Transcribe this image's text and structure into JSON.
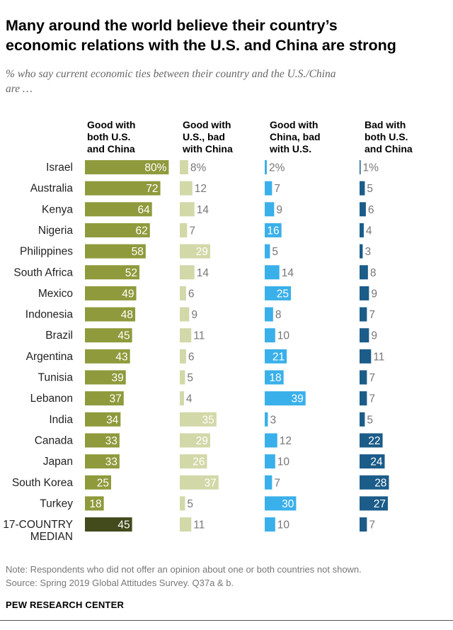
{
  "title_line1": "Many around the world believe their country’s",
  "title_line2": "economic relations with the U.S. and China are strong",
  "subtitle_line1": "% who say current economic ties between their country and the U.S./China",
  "subtitle_line2": "are …",
  "chart_data": {
    "type": "bar",
    "title": "Many around the world believe their country’s economic relations with the U.S. and China are strong",
    "subtitle": "% who say current economic ties between their country and the U.S./China are …",
    "categories": [
      "Israel",
      "Australia",
      "Kenya",
      "Nigeria",
      "Philippines",
      "South Africa",
      "Mexico",
      "Indonesia",
      "Brazil",
      "Argentina",
      "Tunisia",
      "Lebanon",
      "India",
      "Canada",
      "Japan",
      "South Korea",
      "Turkey",
      "17-COUNTRY MEDIAN"
    ],
    "category_lines": [
      [
        "Israel"
      ],
      [
        "Australia"
      ],
      [
        "Kenya"
      ],
      [
        "Nigeria"
      ],
      [
        "Philippines"
      ],
      [
        "South Africa"
      ],
      [
        "Mexico"
      ],
      [
        "Indonesia"
      ],
      [
        "Brazil"
      ],
      [
        "Argentina"
      ],
      [
        "Tunisia"
      ],
      [
        "Lebanon"
      ],
      [
        "India"
      ],
      [
        "Canada"
      ],
      [
        "Japan"
      ],
      [
        "South Korea"
      ],
      [
        "Turkey"
      ],
      [
        "17-COUNTRY",
        "MEDIAN"
      ]
    ],
    "series": [
      {
        "name": "Good with both U.S. and China",
        "header": [
          "Good with",
          "both U.S.",
          "and China"
        ],
        "color": "#8f9a3c",
        "median_color": "#434a1c",
        "values": [
          80,
          72,
          64,
          62,
          58,
          52,
          49,
          48,
          45,
          43,
          39,
          37,
          34,
          33,
          33,
          25,
          18,
          45
        ]
      },
      {
        "name": "Good with U.S., bad with China",
        "header": [
          "Good with",
          "U.S., bad",
          "with China"
        ],
        "color": "#d2d8a8",
        "values": [
          8,
          12,
          14,
          7,
          29,
          14,
          6,
          9,
          11,
          6,
          5,
          4,
          35,
          29,
          26,
          37,
          5,
          11
        ]
      },
      {
        "name": "Good with China, bad with U.S.",
        "header": [
          "Good with",
          "China, bad",
          "with U.S."
        ],
        "color": "#3ab0ea",
        "values": [
          2,
          7,
          9,
          16,
          5,
          14,
          25,
          8,
          10,
          21,
          18,
          39,
          3,
          12,
          10,
          7,
          30,
          10
        ]
      },
      {
        "name": "Bad with both U.S. and China",
        "header": [
          "Bad with",
          "both U.S.",
          "and China"
        ],
        "color": "#1b5c89",
        "values": [
          1,
          5,
          6,
          4,
          3,
          8,
          9,
          7,
          9,
          11,
          7,
          7,
          5,
          22,
          24,
          28,
          27,
          7
        ]
      }
    ],
    "value_suffix_first_row": "%",
    "xlim": [
      0,
      100
    ]
  },
  "note": "Note: Respondents who did not offer an opinion about one or both countries not shown.",
  "source": "Source: Spring 2019 Global Attitudes Survey. Q37a & b.",
  "organization": "PEW RESEARCH CENTER",
  "colors": {
    "inside_label": "#ffffff",
    "outside_label": "#777777",
    "category_label": "#222222"
  }
}
